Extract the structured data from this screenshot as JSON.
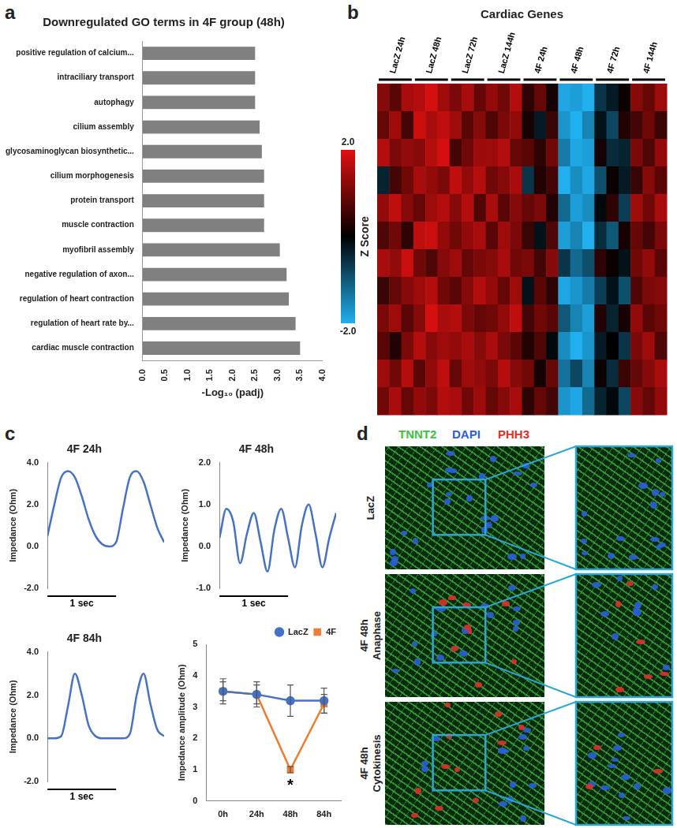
{
  "panel_labels": [
    "a",
    "b",
    "c",
    "d"
  ],
  "chart_data": [
    {
      "type": "bar",
      "orientation": "horizontal",
      "title": "Downregulated GO terms in 4F group (48h)",
      "x_label": "-Log₁₀ (padj)",
      "categories": [
        "positive regulation of calcium...",
        "intraciliary transport",
        "autophagy",
        "cilium assembly",
        "glycosaminoglycan biosynthetic...",
        "cilium morphogenesis",
        "protein transport",
        "muscle contraction",
        "myofibril assembly",
        "negative regulation of axon...",
        "regulation of heart contraction",
        "regulation of heart rate by...",
        "cardiac muscle contraction"
      ],
      "values": [
        2.5,
        2.5,
        2.5,
        2.6,
        2.65,
        2.7,
        2.7,
        2.7,
        3.05,
        3.2,
        3.25,
        3.4,
        3.5
      ],
      "color": "#808080",
      "xlim": [
        0,
        4
      ],
      "xticks": [
        {
          "value": 0,
          "label": "0.0"
        },
        {
          "value": 0.5,
          "label": "0.5"
        },
        {
          "value": 1,
          "label": "1.0"
        },
        {
          "value": 1.5,
          "label": "1.5"
        },
        {
          "value": 2,
          "label": "2.0"
        },
        {
          "value": 2.5,
          "label": "2.5"
        },
        {
          "value": 3,
          "label": "3.0"
        },
        {
          "value": 3.5,
          "label": "3.5"
        },
        {
          "value": 4,
          "label": "4.0"
        }
      ],
      "grid": false
    },
    {
      "type": "heatmap",
      "title": "Cardiac Genes",
      "tick_labels": false,
      "groups": [
        {
          "name": "LacZ 24h",
          "columns": 3
        },
        {
          "name": "LacZ 48h",
          "columns": 3
        },
        {
          "name": "LacZ 72h",
          "columns": 3
        },
        {
          "name": "LacZ 144h",
          "columns": 3
        },
        {
          "name": "4F 24h",
          "columns": 3
        },
        {
          "name": "4F 48h",
          "columns": 3
        },
        {
          "name": "4F 72h",
          "columns": 3
        },
        {
          "name": "4F 144h",
          "columns": 3
        }
      ],
      "cells": [
        [
          1.2,
          0.8,
          1.5,
          1.6,
          1.9,
          1.4,
          1.1,
          1.5,
          0.9,
          1.3,
          1.0,
          1.6,
          0.4,
          0.9,
          0.2,
          -1.9,
          -1.8,
          -2.0,
          -0.6,
          -0.3,
          0.1,
          1.2,
          0.9,
          1.4
        ],
        [
          0.9,
          1.4,
          0.6,
          1.8,
          1.5,
          1.7,
          1.4,
          0.8,
          1.2,
          0.7,
          1.1,
          1.3,
          0.2,
          -0.3,
          0.5,
          -1.7,
          -2.0,
          -1.5,
          -0.2,
          -0.8,
          0.3,
          0.6,
          1.0,
          0.5
        ],
        [
          1.6,
          1.1,
          1.3,
          1.2,
          1.6,
          1.9,
          0.6,
          1.0,
          1.4,
          1.4,
          1.6,
          0.9,
          0.8,
          0.4,
          1.0,
          -1.4,
          -1.9,
          -1.8,
          0.2,
          -0.5,
          -0.4,
          1.1,
          0.7,
          1.3
        ],
        [
          -0.4,
          0.6,
          1.0,
          1.5,
          1.3,
          1.1,
          1.7,
          1.3,
          1.6,
          1.0,
          1.2,
          1.5,
          -0.6,
          0.3,
          0.6,
          -2.0,
          -1.6,
          -1.9,
          -0.9,
          0.1,
          -0.3,
          0.5,
          1.2,
          0.8
        ],
        [
          1.3,
          1.7,
          1.2,
          0.9,
          1.4,
          1.6,
          1.2,
          1.6,
          0.7,
          1.5,
          0.8,
          1.2,
          0.9,
          1.1,
          0.3,
          -1.2,
          -1.8,
          -1.6,
          -0.1,
          0.4,
          -0.7,
          1.4,
          1.0,
          1.5
        ],
        [
          0.7,
          1.0,
          0.4,
          1.7,
          1.8,
          1.3,
          1.0,
          1.3,
          1.5,
          0.8,
          1.4,
          1.1,
          0.5,
          -0.2,
          0.7,
          -1.8,
          -1.5,
          -2.0,
          -0.5,
          -1.0,
          0.2,
          0.9,
          0.6,
          1.1
        ],
        [
          1.5,
          1.3,
          1.8,
          1.0,
          0.7,
          1.2,
          1.4,
          0.9,
          1.1,
          1.2,
          1.5,
          1.0,
          1.1,
          0.6,
          1.2,
          -0.6,
          -1.2,
          -0.9,
          0.4,
          0.1,
          -0.2,
          1.0,
          1.3,
          0.8
        ],
        [
          0.5,
          0.9,
          1.2,
          1.4,
          1.6,
          1.0,
          0.8,
          1.2,
          1.6,
          1.3,
          0.9,
          1.4,
          -0.2,
          0.8,
          0.4,
          -1.9,
          -1.7,
          -1.4,
          -0.7,
          -0.2,
          -0.9,
          0.7,
          1.1,
          1.2
        ],
        [
          1.1,
          1.4,
          0.8,
          1.2,
          1.9,
          1.5,
          1.6,
          1.1,
          0.9,
          1.0,
          1.3,
          1.7,
          0.6,
          1.0,
          0.8,
          -1.0,
          -1.5,
          -1.8,
          0.3,
          -0.4,
          0.2,
          1.3,
          0.8,
          1.0
        ],
        [
          0.8,
          0.3,
          1.1,
          1.6,
          1.2,
          1.4,
          1.3,
          1.5,
          1.2,
          1.5,
          1.1,
          0.8,
          0.3,
          0.7,
          -0.1,
          -1.6,
          -2.0,
          -1.7,
          -0.3,
          0.0,
          -0.6,
          1.1,
          1.4,
          0.7
        ],
        [
          1.4,
          1.0,
          1.6,
          0.8,
          1.3,
          1.7,
          0.9,
          1.4,
          1.3,
          1.1,
          1.6,
          1.2,
          1.0,
          0.2,
          0.9,
          -1.3,
          -0.8,
          -1.5,
          0.1,
          -0.5,
          0.5,
          0.9,
          1.2,
          1.5
        ],
        [
          1.0,
          1.5,
          0.9,
          1.3,
          1.1,
          1.6,
          1.5,
          1.0,
          1.4,
          0.9,
          1.2,
          1.5,
          0.4,
          0.9,
          0.6,
          -1.7,
          -1.9,
          -1.2,
          -0.4,
          -0.1,
          -0.8,
          1.2,
          0.9,
          1.3
        ]
      ],
      "colorbar": {
        "label": "Z Score",
        "range": [
          -2,
          2
        ],
        "ticks": [
          {
            "value": 2,
            "label": "2.0"
          },
          {
            "value": -2,
            "label": "-2.0"
          }
        ],
        "colors": [
          "#20b0f0",
          "#000000",
          "#e01010"
        ]
      }
    },
    {
      "type": "line",
      "title": "4F 24h",
      "y_label": "Impedance (Ohm)",
      "color": "#4472c4",
      "tick_labels": "y",
      "grid": false,
      "x": [
        0,
        0.1,
        0.2,
        0.3,
        0.4,
        0.5,
        0.6,
        0.7,
        0.8,
        0.9,
        1.0,
        1.1,
        1.2,
        1.3,
        1.4,
        1.5,
        1.6,
        1.7
      ],
      "values": [
        0.5,
        2.0,
        3.3,
        3.6,
        3.3,
        2.4,
        1.3,
        0.5,
        0.1,
        0,
        0.2,
        1.8,
        3.3,
        3.6,
        3.1,
        2.0,
        0.9,
        0.2
      ],
      "xlim": [
        0,
        1.7
      ],
      "ylim": [
        -2,
        4
      ],
      "yticks": [
        {
          "value": -2,
          "label": "-2.0"
        },
        {
          "value": 0,
          "label": "0.0"
        },
        {
          "value": 2,
          "label": "2.0"
        },
        {
          "value": 4,
          "label": "4.0"
        }
      ],
      "scale_bar": {
        "length": 1,
        "label": "1 sec"
      }
    },
    {
      "type": "line",
      "title": "4F 48h",
      "y_label": "Impedance (Ohm)",
      "color": "#4472c4",
      "tick_labels": "y",
      "grid": false,
      "x": [
        0,
        0.1,
        0.2,
        0.3,
        0.4,
        0.5,
        0.6,
        0.7,
        0.8,
        0.9,
        1.0,
        1.1,
        1.2,
        1.3,
        1.4,
        1.5,
        1.6,
        1.7
      ],
      "values": [
        0.2,
        0.9,
        0.6,
        -0.4,
        0.3,
        0.8,
        0.1,
        -0.6,
        0.4,
        0.9,
        0.2,
        -0.5,
        0.5,
        1.0,
        0.3,
        -0.5,
        0.2,
        0.8
      ],
      "xlim": [
        0,
        1.7
      ],
      "ylim": [
        -1,
        2
      ],
      "yticks": [
        {
          "value": -1,
          "label": "-1.0"
        },
        {
          "value": 0,
          "label": "0.0"
        },
        {
          "value": 1,
          "label": "1.0"
        },
        {
          "value": 2,
          "label": "2.0"
        }
      ],
      "scale_bar": {
        "length": 1,
        "label": "1 sec"
      }
    },
    {
      "type": "line",
      "title": "4F 84h",
      "y_label": "Impedance (Ohm)",
      "color": "#4472c4",
      "tick_labels": "y",
      "grid": false,
      "x": [
        0,
        0.1,
        0.2,
        0.3,
        0.4,
        0.5,
        0.6,
        0.7,
        0.8,
        0.9,
        1.0,
        1.1,
        1.2,
        1.3,
        1.4,
        1.5,
        1.6,
        1.7
      ],
      "values": [
        0,
        0,
        0.1,
        1.5,
        3.0,
        2.0,
        0.6,
        0.1,
        0,
        0,
        0,
        0,
        0.2,
        2.0,
        3.0,
        1.6,
        0.4,
        0.1
      ],
      "xlim": [
        0,
        1.7
      ],
      "ylim": [
        -2,
        4
      ],
      "yticks": [
        {
          "value": -2,
          "label": "-2.0"
        },
        {
          "value": 0,
          "label": "0.0"
        },
        {
          "value": 2,
          "label": "2.0"
        },
        {
          "value": 4,
          "label": "4.0"
        }
      ],
      "scale_bar": {
        "length": 1,
        "label": "1 sec"
      }
    },
    {
      "type": "line",
      "y_label": "Impedance amplitude (Ohm)",
      "grid": false,
      "legend": "top-right",
      "categories": [
        "0h",
        "24h",
        "48h",
        "84h"
      ],
      "ylim": [
        0,
        5
      ],
      "yticks": [
        0,
        1,
        2,
        3,
        4,
        5
      ],
      "series": [
        {
          "name": "LacZ",
          "color": "#4472c4",
          "marker": "circle",
          "values": [
            3.5,
            3.4,
            3.2,
            3.2
          ],
          "errors": [
            0.4,
            0.4,
            0.5,
            0.4
          ]
        },
        {
          "name": "4F",
          "color": "#ed7d31",
          "marker": "square",
          "values": [
            3.5,
            3.4,
            1.0,
            3.1
          ],
          "errors": [
            0.3,
            0.3,
            0.1,
            0.3
          ]
        }
      ],
      "annotations": [
        {
          "text": "*",
          "category": "48h",
          "series": "4F"
        }
      ]
    }
  ],
  "images": {
    "channels": [
      {
        "name": "TNNT2",
        "color": "#3ec23e"
      },
      {
        "name": "DAPI",
        "color": "#2b5fd9"
      },
      {
        "name": "PHH3",
        "color": "#e0302a"
      }
    ],
    "rows": [
      [
        "LacZ"
      ],
      [
        "4F 48h",
        "Anaphase"
      ],
      [
        "4F 48h",
        "Cytokinesis"
      ]
    ]
  }
}
